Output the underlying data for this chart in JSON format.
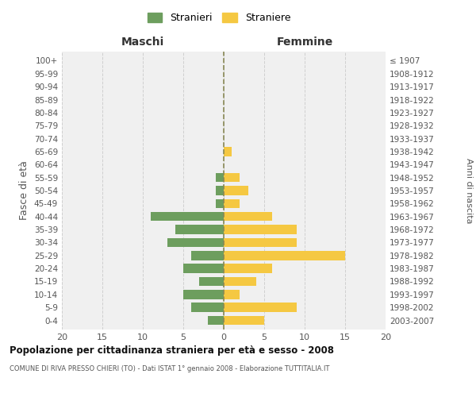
{
  "age_groups": [
    "0-4",
    "5-9",
    "10-14",
    "15-19",
    "20-24",
    "25-29",
    "30-34",
    "35-39",
    "40-44",
    "45-49",
    "50-54",
    "55-59",
    "60-64",
    "65-69",
    "70-74",
    "75-79",
    "80-84",
    "85-89",
    "90-94",
    "95-99",
    "100+"
  ],
  "birth_years": [
    "2003-2007",
    "1998-2002",
    "1993-1997",
    "1988-1992",
    "1983-1987",
    "1978-1982",
    "1973-1977",
    "1968-1972",
    "1963-1967",
    "1958-1962",
    "1953-1957",
    "1948-1952",
    "1943-1947",
    "1938-1942",
    "1933-1937",
    "1928-1932",
    "1923-1927",
    "1918-1922",
    "1913-1917",
    "1908-1912",
    "≤ 1907"
  ],
  "maschi": [
    2,
    4,
    5,
    3,
    5,
    4,
    7,
    6,
    9,
    1,
    1,
    1,
    0,
    0,
    0,
    0,
    0,
    0,
    0,
    0,
    0
  ],
  "femmine": [
    5,
    9,
    2,
    4,
    6,
    15,
    9,
    9,
    6,
    2,
    3,
    2,
    0,
    1,
    0,
    0,
    0,
    0,
    0,
    0,
    0
  ],
  "maschi_color": "#6d9e5e",
  "femmine_color": "#f5c842",
  "background_color": "#f0f0f0",
  "grid_color": "#d0d0d0",
  "title": "Popolazione per cittadinanza straniera per età e sesso - 2008",
  "subtitle": "COMUNE DI RIVA PRESSO CHIERI (TO) - Dati ISTAT 1° gennaio 2008 - Elaborazione TUTTITALIA.IT",
  "ylabel_left": "Fasce di età",
  "ylabel_right": "Anni di nascita",
  "header_maschi": "Maschi",
  "header_femmine": "Femmine",
  "legend_maschi": "Stranieri",
  "legend_femmine": "Straniere",
  "xlim": 20,
  "bar_height": 0.7
}
